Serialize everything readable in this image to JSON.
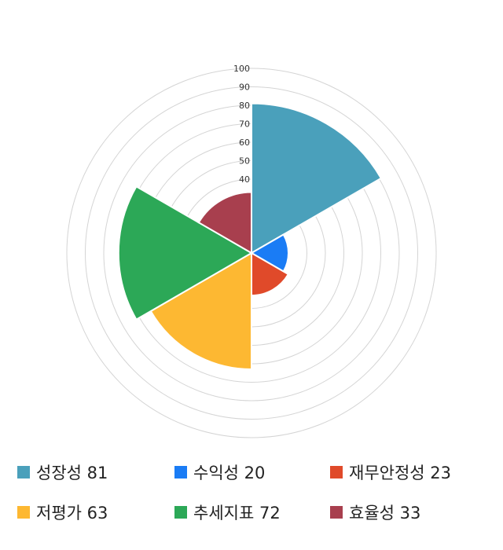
{
  "chart_data": {
    "type": "polar-area",
    "title": "",
    "radial_axis": {
      "min": 0,
      "max": 100,
      "step": 10,
      "tick_labels": [
        "40",
        "50",
        "60",
        "70",
        "80",
        "90",
        "100"
      ],
      "grid": true
    },
    "categories": [
      "성장성",
      "수익성",
      "재무안정성",
      "저평가",
      "추세지표",
      "효율성"
    ],
    "values": [
      81,
      20,
      23,
      63,
      72,
      33
    ],
    "colors": [
      "#4aa0bb",
      "#1a7cf5",
      "#e04a2a",
      "#fdb832",
      "#2ca857",
      "#a83f4e"
    ]
  },
  "legend": [
    {
      "label": "성장성 81",
      "color": "#4aa0bb"
    },
    {
      "label": "수익성 20",
      "color": "#1a7cf5"
    },
    {
      "label": "재무안정성 23",
      "color": "#e04a2a"
    },
    {
      "label": "저평가 63",
      "color": "#fdb832"
    },
    {
      "label": "추세지표 72",
      "color": "#2ca857"
    },
    {
      "label": "효율성 33",
      "color": "#a83f4e"
    }
  ]
}
